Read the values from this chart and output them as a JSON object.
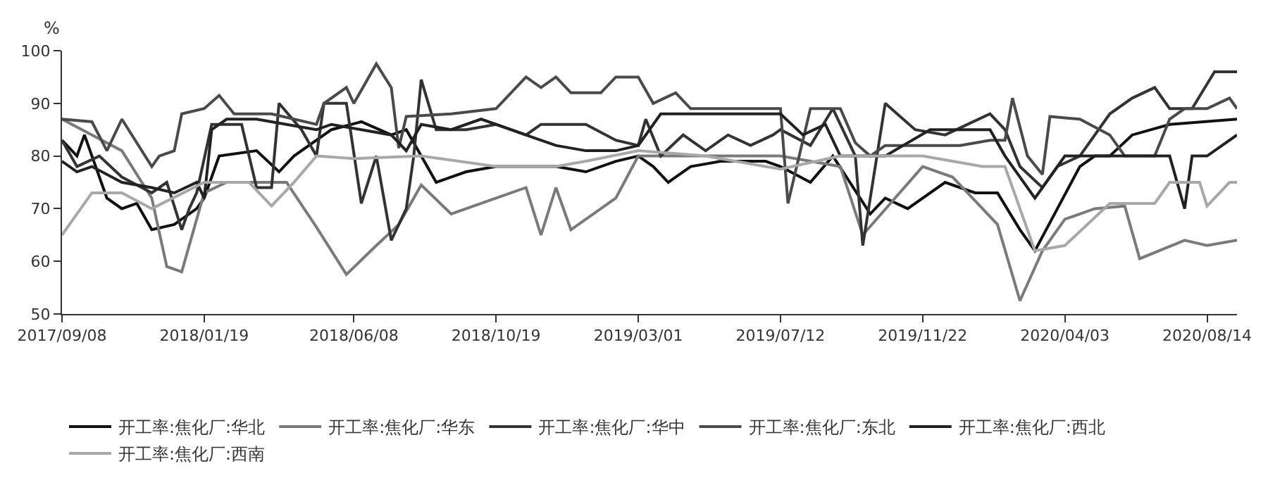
{
  "chart_data": {
    "type": "line",
    "ylabel": "%",
    "legend": "bottom",
    "line_style": "solid",
    "xlim": [
      "2017-09-08",
      "2020-09-11"
    ],
    "xticks": [
      {
        "value": "2017-09-08",
        "label": "2017/09/08"
      },
      {
        "value": "2018-01-19",
        "label": "2018/01/19"
      },
      {
        "value": "2018-06-08",
        "label": "2018/06/08"
      },
      {
        "value": "2018-10-19",
        "label": "2018/10/19"
      },
      {
        "value": "2019-03-01",
        "label": "2019/03/01"
      },
      {
        "value": "2019-07-12",
        "label": "2019/07/12"
      },
      {
        "value": "2019-11-22",
        "label": "2019/11/22"
      },
      {
        "value": "2020-04-03",
        "label": "2020/04/03"
      },
      {
        "value": "2020-08-14",
        "label": "2020/08/14"
      }
    ],
    "ylim": [
      50,
      100
    ],
    "yticks": [
      50,
      60,
      70,
      80,
      90,
      100
    ],
    "series": [
      {
        "name": "开工率:焦化厂:华北",
        "color": "#111111",
        "x": [
          "2017-09-08",
          "2017-09-22",
          "2017-09-29",
          "2017-10-20",
          "2017-11-03",
          "2017-11-17",
          "2017-12-01",
          "2017-12-22",
          "2018-01-12",
          "2018-01-19",
          "2018-02-02",
          "2018-03-09",
          "2018-03-30",
          "2018-04-13",
          "2018-05-18",
          "2018-06-15",
          "2018-07-13",
          "2018-07-27",
          "2018-08-10",
          "2018-08-24",
          "2018-09-21",
          "2018-10-19",
          "2018-12-14",
          "2019-01-11",
          "2019-02-08",
          "2019-03-01",
          "2019-03-15",
          "2019-03-29",
          "2019-04-19",
          "2019-05-17",
          "2019-06-28",
          "2019-07-12",
          "2019-08-09",
          "2019-08-30",
          "2019-10-04",
          "2019-10-18",
          "2019-11-08",
          "2019-12-13",
          "2020-01-10",
          "2020-01-31",
          "2020-02-21",
          "2020-03-06",
          "2020-03-27",
          "2020-04-17",
          "2020-05-01",
          "2020-05-15",
          "2020-06-05",
          "2020-07-10",
          "2020-09-11"
        ],
        "values": [
          83,
          80,
          84,
          72,
          70,
          71,
          66,
          67,
          70,
          72,
          80,
          81,
          77,
          80,
          85,
          86.5,
          84,
          85,
          80,
          75,
          77,
          78,
          78,
          77,
          79,
          80,
          78,
          75,
          78,
          79,
          79,
          78,
          75,
          80,
          69,
          72,
          70,
          75,
          73,
          73,
          66,
          62,
          70,
          78,
          80,
          80,
          84,
          86,
          87
        ]
      },
      {
        "name": "开工率:焦化厂:华东",
        "color": "#7a7a7a",
        "x": [
          "2017-09-08",
          "2017-10-06",
          "2017-11-03",
          "2017-12-01",
          "2017-12-15",
          "2017-12-29",
          "2018-01-19",
          "2018-02-09",
          "2018-03-02",
          "2018-04-06",
          "2018-05-04",
          "2018-06-01",
          "2018-06-29",
          "2018-07-20",
          "2018-08-10",
          "2018-09-07",
          "2018-10-19",
          "2018-11-16",
          "2018-11-30",
          "2018-12-14",
          "2018-12-28",
          "2019-02-08",
          "2019-03-01",
          "2019-05-03",
          "2019-07-12",
          "2019-09-06",
          "2019-09-27",
          "2019-11-22",
          "2019-12-20",
          "2020-01-31",
          "2020-02-21",
          "2020-03-13",
          "2020-04-03",
          "2020-05-01",
          "2020-05-29",
          "2020-06-12",
          "2020-07-24",
          "2020-08-14",
          "2020-09-11"
        ],
        "values": [
          87,
          84,
          81,
          72,
          59,
          58,
          73,
          75,
          75,
          75,
          66.5,
          57.5,
          63,
          67,
          74.5,
          69,
          72,
          74,
          65,
          74,
          66,
          72,
          80,
          80,
          80,
          78,
          65,
          78,
          76,
          67,
          52.5,
          62,
          68,
          70,
          70.5,
          60.5,
          64,
          63,
          64
        ]
      },
      {
        "name": "开工率:焦化厂:华中",
        "color": "#333333",
        "x": [
          "2017-09-08",
          "2017-09-22",
          "2017-10-13",
          "2017-11-03",
          "2017-12-01",
          "2017-12-15",
          "2017-12-29",
          "2018-01-05",
          "2018-01-12",
          "2018-01-26",
          "2018-02-23",
          "2018-03-09",
          "2018-03-23",
          "2018-03-30",
          "2018-04-20",
          "2018-05-04",
          "2018-05-11",
          "2018-06-01",
          "2018-06-15",
          "2018-06-29",
          "2018-07-13",
          "2018-07-27",
          "2018-08-03",
          "2018-08-10",
          "2018-08-24",
          "2018-09-21",
          "2018-10-19",
          "2018-11-16",
          "2018-11-30",
          "2019-01-11",
          "2019-02-08",
          "2019-03-01",
          "2019-03-08",
          "2019-03-22",
          "2019-04-12",
          "2019-05-03",
          "2019-05-24",
          "2019-06-14",
          "2019-07-05",
          "2019-07-12",
          "2019-08-09",
          "2019-08-30",
          "2019-09-20",
          "2019-09-27",
          "2019-10-18",
          "2019-11-15",
          "2019-12-13",
          "2020-01-24",
          "2020-02-07",
          "2020-02-21",
          "2020-03-13",
          "2020-03-27",
          "2020-04-17",
          "2020-05-15",
          "2020-06-05",
          "2020-06-26",
          "2020-07-10",
          "2020-07-31",
          "2020-08-21",
          "2020-09-11"
        ],
        "values": [
          83,
          78,
          80,
          76,
          73,
          75,
          66,
          70,
          73,
          86,
          86,
          74,
          74,
          90,
          85,
          80,
          90,
          90,
          71,
          80,
          64,
          70,
          80,
          94.5,
          85,
          85,
          86,
          84,
          86,
          86,
          83,
          82,
          87,
          80,
          84,
          81,
          84,
          82,
          84,
          85,
          82,
          89,
          80,
          63,
          90,
          85,
          84,
          88,
          85,
          78,
          74,
          78,
          80,
          88,
          91,
          93,
          89,
          89,
          96,
          96
        ]
      },
      {
        "name": "开工率:焦化厂:东北",
        "color": "#4a4a4a",
        "x": [
          "2017-09-08",
          "2017-10-06",
          "2017-10-20",
          "2017-11-03",
          "2017-12-01",
          "2017-12-08",
          "2017-12-22",
          "2017-12-29",
          "2018-01-19",
          "2018-02-02",
          "2018-02-16",
          "2018-03-23",
          "2018-05-04",
          "2018-05-11",
          "2018-06-01",
          "2018-06-08",
          "2018-06-29",
          "2018-07-13",
          "2018-07-20",
          "2018-07-27",
          "2018-09-07",
          "2018-10-19",
          "2018-11-16",
          "2018-11-30",
          "2018-12-14",
          "2018-12-28",
          "2019-01-25",
          "2019-02-08",
          "2019-03-01",
          "2019-03-15",
          "2019-04-05",
          "2019-04-19",
          "2019-07-12",
          "2019-07-19",
          "2019-08-09",
          "2019-09-06",
          "2019-09-20",
          "2019-10-04",
          "2019-10-18",
          "2019-12-27",
          "2020-01-24",
          "2020-02-07",
          "2020-02-14",
          "2020-02-28",
          "2020-03-13",
          "2020-03-20",
          "2020-04-17",
          "2020-05-15",
          "2020-05-29",
          "2020-06-26",
          "2020-07-10",
          "2020-07-24",
          "2020-08-14",
          "2020-09-04",
          "2020-09-11"
        ],
        "values": [
          87,
          86.5,
          81,
          87,
          78,
          80,
          81,
          88,
          89,
          91.5,
          88,
          88,
          86,
          90,
          93,
          90,
          97.5,
          93,
          81.5,
          87.5,
          88,
          89,
          95,
          93,
          95,
          92,
          92,
          95,
          95,
          90,
          92,
          89,
          89,
          71,
          89,
          89,
          82.5,
          80,
          82,
          82,
          83,
          83,
          91,
          80,
          76.5,
          87.5,
          87,
          84,
          80,
          80,
          87,
          89,
          89,
          91,
          89
        ]
      },
      {
        "name": "开工率:焦化厂:西北",
        "color": "#222222",
        "x": [
          "2017-09-08",
          "2017-09-22",
          "2017-10-06",
          "2017-11-03",
          "2017-12-01",
          "2017-12-22",
          "2018-01-12",
          "2018-01-19",
          "2018-01-26",
          "2018-02-09",
          "2018-03-09",
          "2018-04-06",
          "2018-05-04",
          "2018-05-18",
          "2018-06-15",
          "2018-07-13",
          "2018-07-27",
          "2018-08-10",
          "2018-09-07",
          "2018-10-05",
          "2018-11-02",
          "2018-12-14",
          "2019-01-11",
          "2019-02-08",
          "2019-03-01",
          "2019-03-22",
          "2019-07-12",
          "2019-08-02",
          "2019-08-23",
          "2019-09-06",
          "2019-10-18",
          "2019-11-29",
          "2020-01-24",
          "2020-02-07",
          "2020-03-06",
          "2020-04-03",
          "2020-05-01",
          "2020-07-10",
          "2020-07-24",
          "2020-07-31",
          "2020-08-14",
          "2020-09-11"
        ],
        "values": [
          79,
          77,
          78,
          75,
          74,
          73,
          75,
          72,
          85,
          87,
          87,
          86,
          85,
          86,
          85,
          84,
          81,
          86,
          85,
          87,
          85,
          82,
          81,
          81,
          82,
          88,
          88,
          84,
          86,
          80,
          80,
          85,
          85,
          80,
          72,
          80,
          80,
          80,
          70,
          80,
          80,
          84
        ]
      },
      {
        "name": "开工率:焦化厂:西南",
        "color": "#a8a8a8",
        "x": [
          "2017-09-08",
          "2017-10-06",
          "2017-11-03",
          "2017-12-01",
          "2018-01-19",
          "2018-03-02",
          "2018-03-23",
          "2018-04-13",
          "2018-05-04",
          "2018-06-08",
          "2018-08-10",
          "2018-10-19",
          "2018-12-14",
          "2019-01-11",
          "2019-03-01",
          "2019-05-03",
          "2019-07-12",
          "2019-09-06",
          "2019-11-22",
          "2020-01-17",
          "2020-02-07",
          "2020-03-06",
          "2020-04-03",
          "2020-05-15",
          "2020-06-26",
          "2020-07-10",
          "2020-08-07",
          "2020-08-14",
          "2020-09-04",
          "2020-09-11"
        ],
        "values": [
          65,
          73,
          73,
          70,
          75,
          75,
          70.5,
          75,
          80,
          79.5,
          80,
          78,
          78,
          79,
          81,
          80,
          77.5,
          80,
          80,
          78,
          78,
          62,
          63,
          71,
          71,
          75,
          75,
          70.5,
          75,
          75
        ]
      }
    ]
  }
}
